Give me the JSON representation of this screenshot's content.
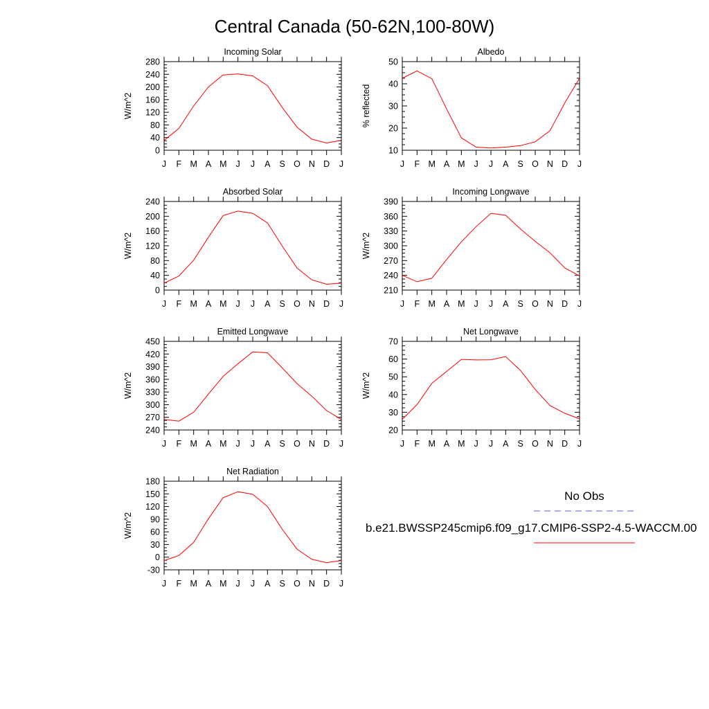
{
  "title": "Central Canada (50-62N,100-80W)",
  "colors": {
    "model": "#ff0000",
    "obs": "#5a5aff",
    "axis": "#000000"
  },
  "legend": {
    "obs_label": "No Obs",
    "model_label": "b.e21.BWSSP245cmip6.f09_g17.CMIP6-SSP2-4.5-WACCM.00"
  },
  "chart_data": [
    {
      "type": "line",
      "title": "Incoming Solar",
      "ylabel": "W/m^2",
      "categories": [
        "J",
        "F",
        "M",
        "A",
        "M",
        "J",
        "J",
        "A",
        "S",
        "O",
        "N",
        "D",
        "J"
      ],
      "ylim": [
        0,
        280
      ],
      "yticks": [
        0,
        40,
        80,
        120,
        160,
        200,
        240,
        280
      ],
      "series": [
        {
          "values": [
            31,
            69,
            140,
            200,
            238,
            241,
            235,
            204,
            135,
            73,
            35,
            23,
            31
          ]
        }
      ]
    },
    {
      "type": "line",
      "title": "Albedo",
      "ylabel": "% reflected",
      "categories": [
        "J",
        "F",
        "M",
        "A",
        "M",
        "J",
        "J",
        "A",
        "S",
        "O",
        "N",
        "D",
        "J"
      ],
      "ylim": [
        10,
        50
      ],
      "yticks": [
        10,
        20,
        30,
        40,
        50
      ],
      "series": [
        {
          "values": [
            42.5,
            45.8,
            42.3,
            28.7,
            15.6,
            11.4,
            11.0,
            11.4,
            12.1,
            13.8,
            18.8,
            31.3,
            42.5
          ]
        }
      ]
    },
    {
      "type": "line",
      "title": "Absorbed Solar",
      "ylabel": "W/m^2",
      "categories": [
        "J",
        "F",
        "M",
        "A",
        "M",
        "J",
        "J",
        "A",
        "S",
        "O",
        "N",
        "D",
        "J"
      ],
      "ylim": [
        0,
        240
      ],
      "yticks": [
        0,
        40,
        80,
        120,
        160,
        200,
        240
      ],
      "series": [
        {
          "values": [
            19,
            38,
            81,
            143,
            202,
            214,
            208,
            182,
            119,
            60,
            28,
            16,
            19
          ]
        }
      ]
    },
    {
      "type": "line",
      "title": "Incoming Longwave",
      "ylabel": "W/m^2",
      "categories": [
        "J",
        "F",
        "M",
        "A",
        "M",
        "J",
        "J",
        "A",
        "S",
        "O",
        "N",
        "D",
        "J"
      ],
      "ylim": [
        210,
        390
      ],
      "yticks": [
        210,
        240,
        270,
        300,
        330,
        360,
        390
      ],
      "series": [
        {
          "values": [
            240,
            227,
            234,
            272,
            308,
            339,
            366,
            362,
            334,
            309,
            286,
            255,
            239
          ]
        }
      ]
    },
    {
      "type": "line",
      "title": "Emitted Longwave",
      "ylabel": "W/m^2",
      "categories": [
        "J",
        "F",
        "M",
        "A",
        "M",
        "J",
        "J",
        "A",
        "S",
        "O",
        "N",
        "D",
        "J"
      ],
      "ylim": [
        240,
        450
      ],
      "yticks": [
        240,
        270,
        300,
        330,
        360,
        390,
        420,
        450
      ],
      "series": [
        {
          "values": [
            265,
            261,
            282,
            325,
            367,
            397,
            425,
            423,
            387,
            350,
            320,
            286,
            265
          ]
        }
      ]
    },
    {
      "type": "line",
      "title": "Net Longwave",
      "ylabel": "W/m^2",
      "categories": [
        "J",
        "F",
        "M",
        "A",
        "M",
        "J",
        "J",
        "A",
        "S",
        "O",
        "N",
        "D",
        "J"
      ],
      "ylim": [
        20,
        70
      ],
      "yticks": [
        20,
        30,
        40,
        50,
        60,
        70
      ],
      "series": [
        {
          "values": [
            26.0,
            34.3,
            46.3,
            53.0,
            59.8,
            59.5,
            59.6,
            61.4,
            53.6,
            42.9,
            33.8,
            29.4,
            26.3
          ]
        }
      ]
    },
    {
      "type": "line",
      "title": "Net Radiation",
      "ylabel": "W/m^2",
      "categories": [
        "J",
        "F",
        "M",
        "A",
        "M",
        "J",
        "J",
        "A",
        "S",
        "O",
        "N",
        "D",
        "J"
      ],
      "ylim": [
        -30,
        180
      ],
      "yticks": [
        -30,
        0,
        30,
        60,
        90,
        120,
        150,
        180
      ],
      "series": [
        {
          "values": [
            -8,
            4,
            35,
            91,
            141,
            155,
            149,
            120,
            66,
            19,
            -5,
            -13,
            -8
          ]
        }
      ]
    }
  ]
}
